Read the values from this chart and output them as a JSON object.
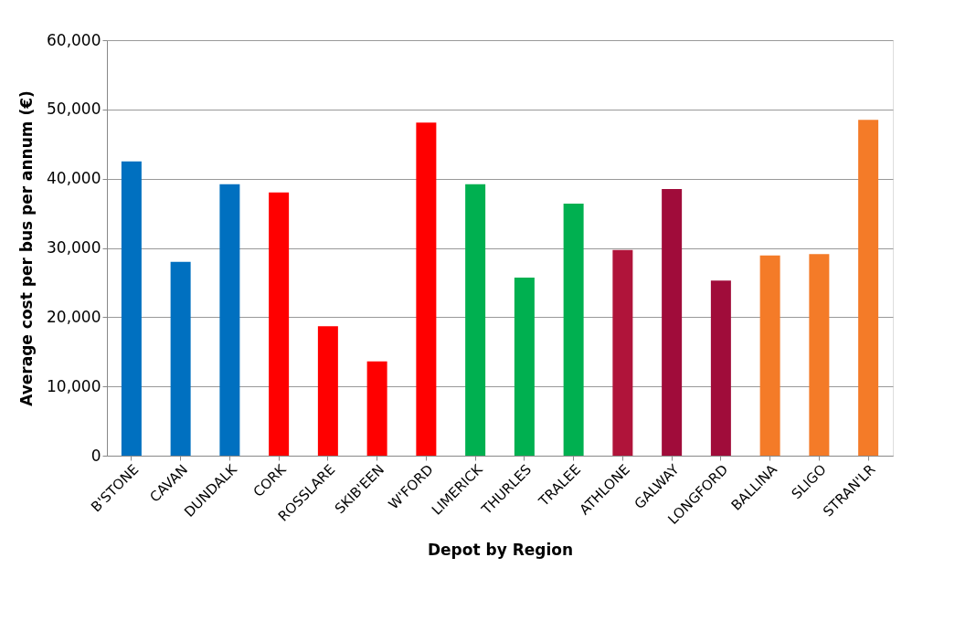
{
  "chart_data": {
    "type": "bar",
    "xlabel": "Depot by Region",
    "ylabel": "Average cost per bus per annum (€)",
    "categories": [
      "B'STONE",
      "CAVAN",
      "DUNDALK",
      "CORK",
      "ROSSLARE",
      "SKIB'EEN",
      "W'FORD",
      "LIMERICK",
      "THURLES",
      "TRALEE",
      "ATHLONE",
      "GALWAY",
      "LONGFORD",
      "BALLINA",
      "SLIGO",
      "STRAN'LR"
    ],
    "values": [
      42500,
      28000,
      39200,
      38000,
      18700,
      13600,
      48100,
      39200,
      25700,
      36400,
      29700,
      38500,
      25300,
      28900,
      29100,
      48500
    ],
    "colors": [
      "#0070c0",
      "#0070c0",
      "#0070c0",
      "#ff0000",
      "#ff0000",
      "#ff0000",
      "#ff0000",
      "#00b050",
      "#00b050",
      "#00b050",
      "#b0143a",
      "#a00c3a",
      "#a00c3a",
      "#f47b28",
      "#f47b28",
      "#f47b28"
    ],
    "ylim": [
      0,
      60000
    ],
    "yticks": [
      0,
      {
        "value": 10000,
        "label": "10,000"
      },
      {
        "value": 20000,
        "label": "20,000"
      },
      {
        "value": 30000,
        "label": "30,000"
      },
      {
        "value": 40000,
        "label": "40,000"
      },
      {
        "value": 50000,
        "label": "50,000"
      },
      {
        "value": 60000,
        "label": "60,000"
      }
    ],
    "grid": "y",
    "legend": false
  }
}
